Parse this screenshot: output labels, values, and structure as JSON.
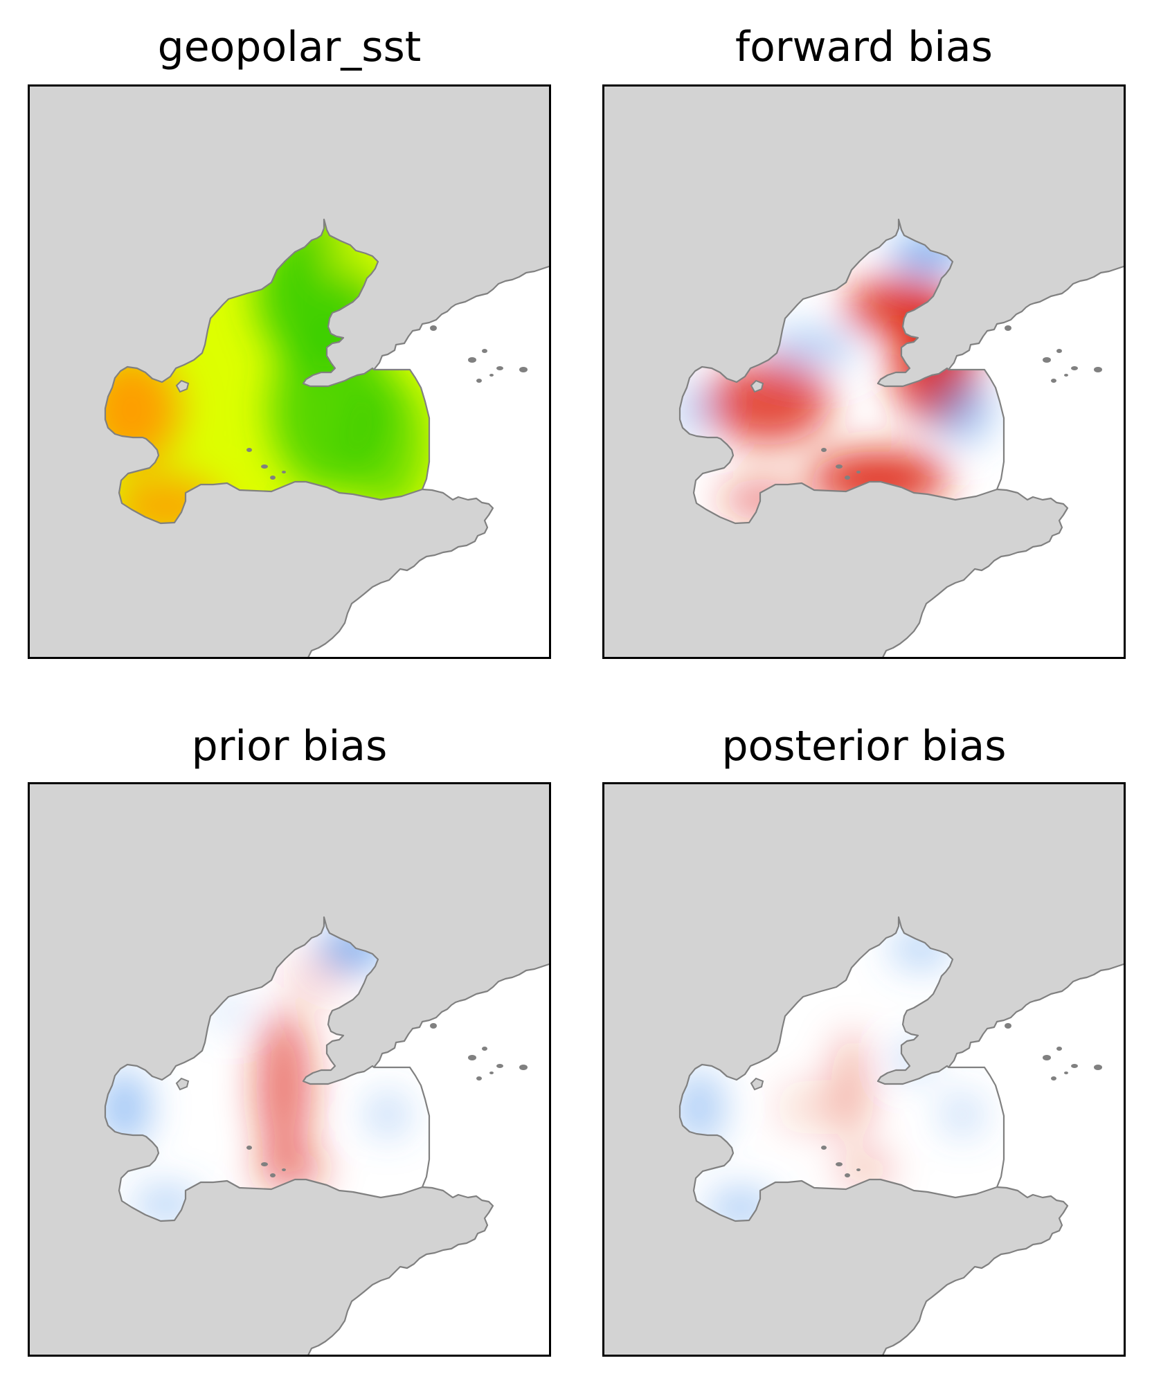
{
  "figure": {
    "panels": [
      {
        "id": "geopolar",
        "title": "geopolar_sst",
        "style": "sst"
      },
      {
        "id": "forward",
        "title": "forward bias",
        "style": "forward"
      },
      {
        "id": "prior",
        "title": "prior bias",
        "style": "prior"
      },
      {
        "id": "posterior",
        "title": "posterior bias",
        "style": "posterior"
      }
    ]
  },
  "colors": {
    "land": "#d3d3d3",
    "coastline": "#808080",
    "frame": "#000000",
    "sst_warm": "#ff9900",
    "sst_mid": "#ddff00",
    "sst_cool": "#33cc00",
    "bias_positive": "#dd2211",
    "bias_negative": "#5599ee",
    "bias_zero": "#ffffff"
  }
}
